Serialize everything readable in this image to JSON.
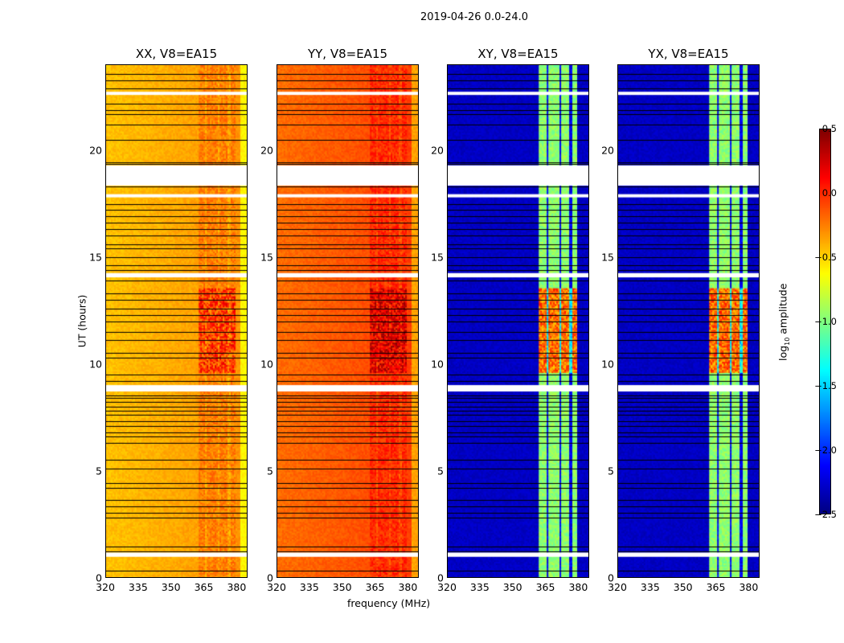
{
  "chart_data": {
    "type": "heatmap",
    "title": "2019-04-26 0.0-24.0",
    "xlabel": "frequency (MHz)",
    "ylabel": "UT (hours)",
    "xlim": [
      320,
      385
    ],
    "ylim": [
      0,
      24
    ],
    "xticks": [
      "320",
      "335",
      "350",
      "365",
      "380"
    ],
    "yticks": [
      "0",
      "5",
      "10",
      "15",
      "20"
    ],
    "colorbar": {
      "label_main": "log",
      "label_sub": "10",
      "label_rest": " amplitude",
      "cmap": "jet",
      "range": [
        -2.5,
        0.5
      ],
      "ticks": [
        "0.5",
        "0.0",
        "−0.5",
        "−1.0",
        "−1.5",
        "−2.0",
        "−2.5"
      ]
    },
    "panels": [
      {
        "title": "XX, V8=EA15",
        "base": -0.45,
        "band": [
          363,
          380
        ],
        "band_value": -0.25,
        "active_value": -0.05
      },
      {
        "title": "YY, V8=EA15",
        "base": -0.2,
        "band": [
          363,
          380
        ],
        "band_value": 0.0,
        "active_value": 0.2
      },
      {
        "title": "XY, V8=EA15",
        "base": -2.3,
        "band": [
          362,
          380
        ],
        "band_value": -0.95,
        "active_value": -0.2
      },
      {
        "title": "YX, V8=EA15",
        "base": -2.3,
        "band": [
          362,
          380
        ],
        "band_value": -0.95,
        "active_value": -0.2
      }
    ],
    "active_hours": [
      9.6,
      13.6
    ],
    "flagged_hours": [
      [
        18.35,
        19.3
      ],
      [
        0.95,
        1.15
      ],
      [
        8.7,
        9.0
      ],
      [
        14.05,
        14.25
      ],
      [
        22.6,
        22.75
      ],
      [
        17.8,
        17.95
      ]
    ],
    "line_hours": [
      0.3,
      1.2,
      1.45,
      2.8,
      3.0,
      3.3,
      3.6,
      4.2,
      4.4,
      5.1,
      5.5,
      6.3,
      6.6,
      6.8,
      7.1,
      7.3,
      7.6,
      7.8,
      8.0,
      8.2,
      8.4,
      8.5,
      9.2,
      9.5,
      10.3,
      10.5,
      11.1,
      11.5,
      12.0,
      12.3,
      12.6,
      13.0,
      13.3,
      13.9,
      14.4,
      14.6,
      15.0,
      15.4,
      15.6,
      16.0,
      16.3,
      16.6,
      16.9,
      17.2,
      17.5,
      18.3,
      19.35,
      19.45,
      20.5,
      21.2,
      21.7,
      21.9,
      22.2,
      22.9,
      23.3,
      23.6
    ]
  }
}
